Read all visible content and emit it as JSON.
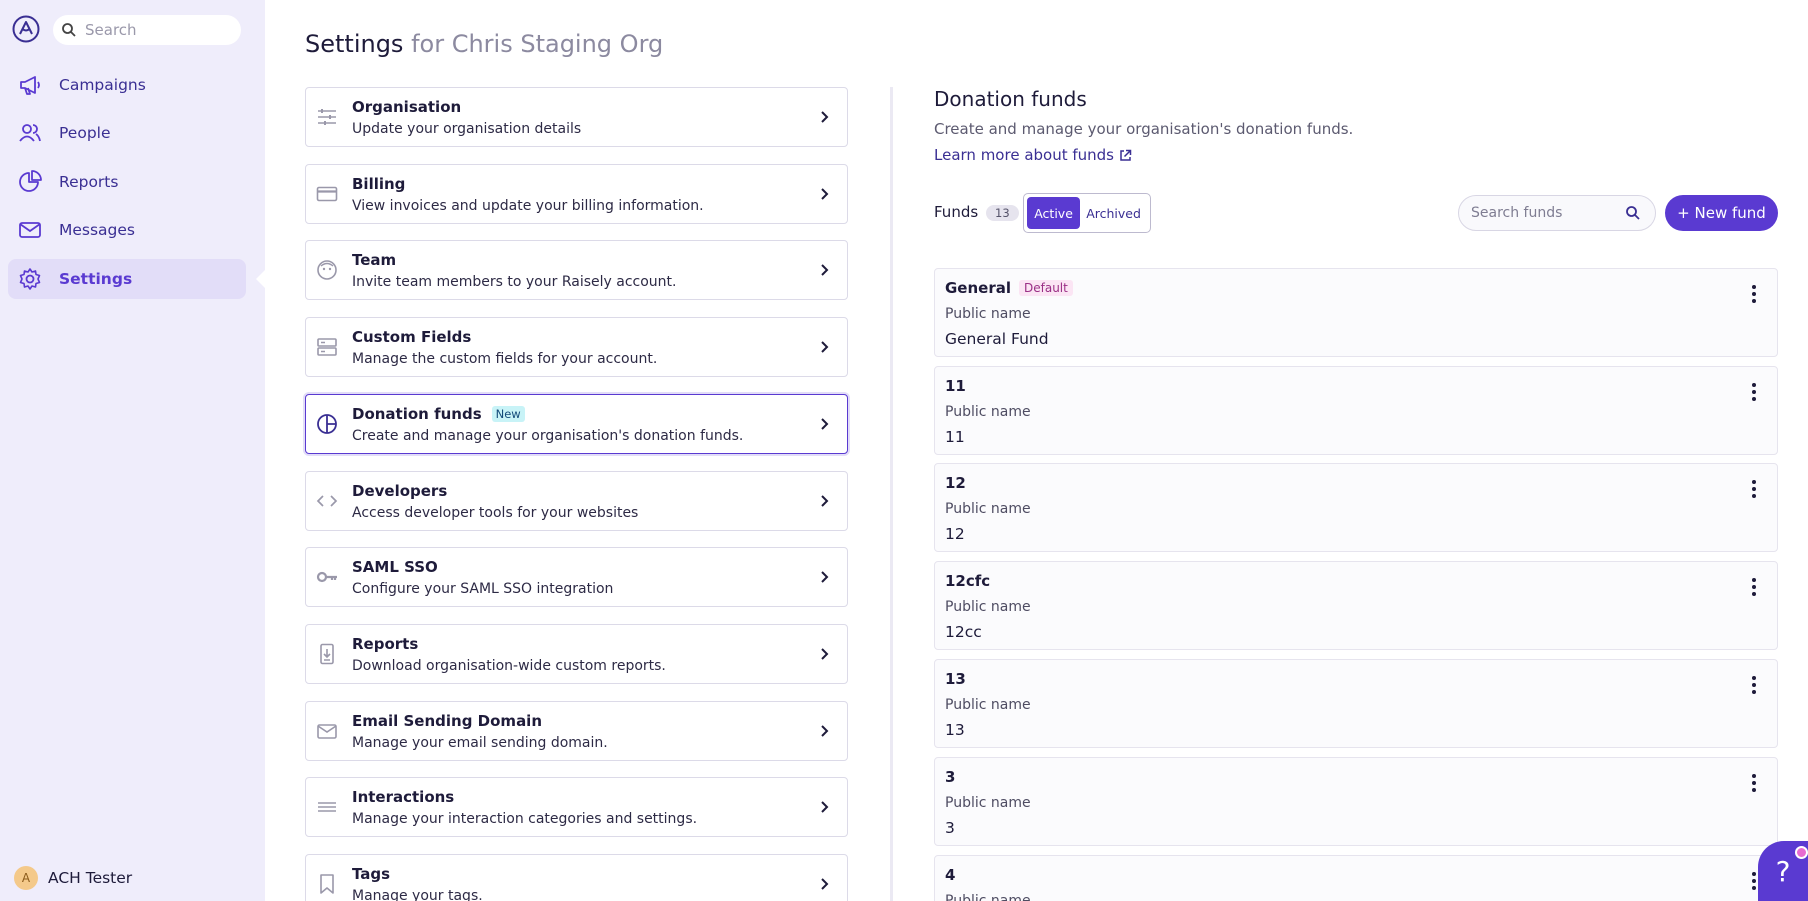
{
  "sidebar": {
    "search_placeholder": "Search",
    "items": [
      {
        "label": "Campaigns",
        "icon": "megaphone-icon"
      },
      {
        "label": "People",
        "icon": "people-icon"
      },
      {
        "label": "Reports",
        "icon": "pie-chart-icon"
      },
      {
        "label": "Messages",
        "icon": "mail-icon"
      },
      {
        "label": "Settings",
        "icon": "gear-icon",
        "active": true
      }
    ],
    "user": {
      "initial": "A",
      "name": "ACH Tester"
    }
  },
  "header": {
    "title": "Settings",
    "org": "for Chris Staging Org"
  },
  "settings": [
    {
      "title": "Organisation",
      "desc": "Update your organisation details",
      "icon": "sliders-icon"
    },
    {
      "title": "Billing",
      "desc": "View invoices and update your billing information.",
      "icon": "credit-card-icon"
    },
    {
      "title": "Team",
      "desc": "Invite team members to your Raisely account.",
      "icon": "team-icon"
    },
    {
      "title": "Custom Fields",
      "desc": "Manage the custom fields for your account.",
      "icon": "fields-icon"
    },
    {
      "title": "Donation funds",
      "badge": "New",
      "desc": "Create and manage your organisation's donation funds.",
      "icon": "funds-icon",
      "selected": true
    },
    {
      "title": "Developers",
      "desc": "Access developer tools for your websites",
      "icon": "code-icon"
    },
    {
      "title": "SAML SSO",
      "desc": "Configure your SAML SSO integration",
      "icon": "key-icon"
    },
    {
      "title": "Reports",
      "desc": "Download organisation-wide custom reports.",
      "icon": "download-icon"
    },
    {
      "title": "Email Sending Domain",
      "desc": "Manage your email sending domain.",
      "icon": "mail-icon"
    },
    {
      "title": "Interactions",
      "desc": "Manage your interaction categories and settings.",
      "icon": "lines-icon"
    },
    {
      "title": "Tags",
      "desc": "Manage your tags.",
      "icon": "bookmark-icon"
    }
  ],
  "funds_panel": {
    "title": "Donation funds",
    "description": "Create and manage your organisation's donation funds.",
    "learn_more": "Learn more about funds",
    "funds_label": "Funds",
    "count": "13",
    "toggle": {
      "active": "Active",
      "archived": "Archived"
    },
    "search_placeholder": "Search funds",
    "new_fund": "+ New fund",
    "public_name_label": "Public name",
    "funds": [
      {
        "name": "General",
        "badge": "Default",
        "public_name": "General Fund"
      },
      {
        "name": "11",
        "public_name": "11"
      },
      {
        "name": "12",
        "public_name": "12"
      },
      {
        "name": "12cfc",
        "public_name": "12cc"
      },
      {
        "name": "13",
        "public_name": "13"
      },
      {
        "name": "3",
        "public_name": "3"
      },
      {
        "name": "4",
        "public_name": ""
      }
    ]
  },
  "help": {
    "label": "?"
  },
  "colors": {
    "accent": "#5a3ad1",
    "sidebar_bg": "#efedfb",
    "new_badge_bg": "#c8f3f7",
    "default_badge_bg": "#fbe5f4"
  }
}
